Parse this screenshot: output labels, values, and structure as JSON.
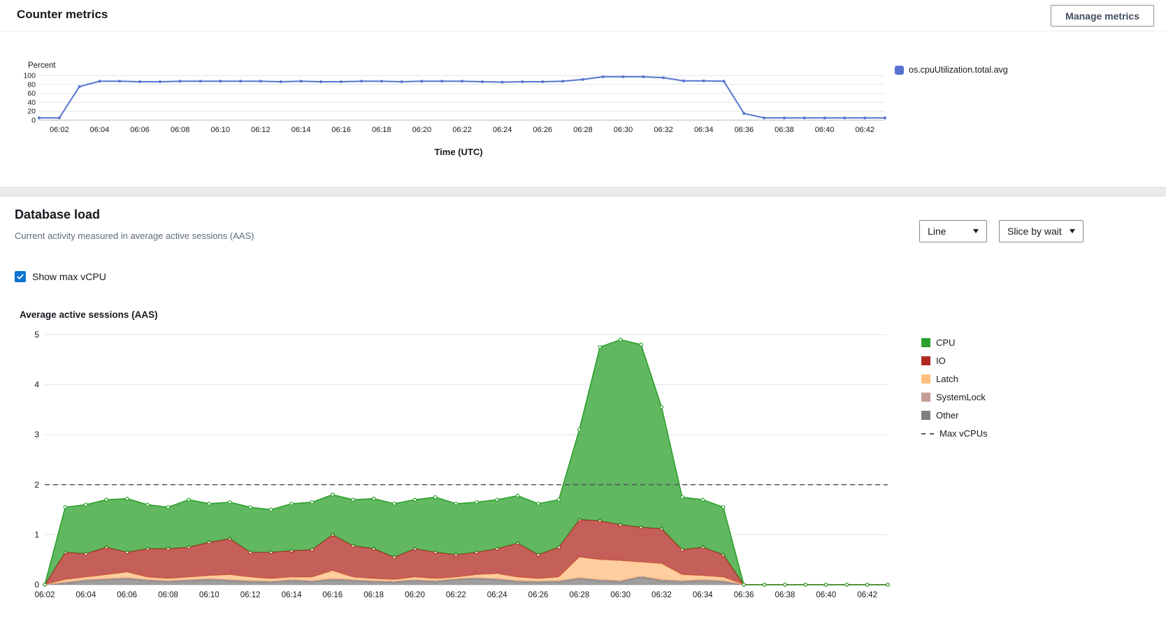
{
  "header": {
    "title": "Counter metrics",
    "manage_metrics_label": "Manage metrics"
  },
  "counter_section": {
    "y_axis_label": "Percent",
    "x_axis_label": "Time (UTC)",
    "legend_label": "os.cpuUtilization.total.avg"
  },
  "db_load_section": {
    "title": "Database load",
    "subtitle": "Current activity measured in average active sessions (AAS)",
    "view_dropdown_value": "Line",
    "slice_dropdown_value": "Slice by wait",
    "show_max_vcpu_label": "Show max vCPU",
    "show_max_vcpu_checked": true,
    "chart_title": "Average active sessions (AAS)"
  },
  "chart_data": [
    {
      "type": "line",
      "title": "os.cpuUtilization.total.avg",
      "ylabel": "Percent",
      "xlabel": "Time (UTC)",
      "ylim": [
        0,
        100
      ],
      "y_ticks": [
        0,
        20,
        40,
        60,
        80,
        100
      ],
      "grid": true,
      "legend_position": "right",
      "x_start": "06:01",
      "x_step_minutes": 1,
      "x_tick_labels": [
        "06:02",
        "06:04",
        "06:06",
        "06:08",
        "06:10",
        "06:12",
        "06:14",
        "06:16",
        "06:18",
        "06:20",
        "06:22",
        "06:24",
        "06:26",
        "06:28",
        "06:30",
        "06:32",
        "06:34",
        "06:36",
        "06:38",
        "06:40",
        "06:42"
      ],
      "series": [
        {
          "name": "os.cpuUtilization.total.avg",
          "color": "#5674cf",
          "values": [
            5,
            5,
            75,
            87,
            87,
            86,
            86,
            87,
            87,
            87,
            87,
            87,
            86,
            87,
            86,
            86,
            87,
            87,
            86,
            87,
            87,
            87,
            86,
            85,
            86,
            86,
            87,
            91,
            97,
            97,
            97,
            95,
            88,
            88,
            87,
            15,
            5,
            5,
            5,
            5,
            5,
            5,
            5
          ]
        }
      ]
    },
    {
      "type": "area",
      "stacked": true,
      "title": "Average active sessions (AAS)",
      "ylim": [
        0,
        5
      ],
      "y_ticks": [
        0,
        1,
        2,
        3,
        4,
        5
      ],
      "grid": true,
      "legend_position": "right",
      "max_vcpus": 2,
      "max_vcpus_color": "#54585e",
      "x_start": "06:02",
      "x_step_minutes": 1,
      "x_tick_labels": [
        "06:02",
        "06:04",
        "06:06",
        "06:08",
        "06:10",
        "06:12",
        "06:14",
        "06:16",
        "06:18",
        "06:20",
        "06:22",
        "06:24",
        "06:26",
        "06:28",
        "06:30",
        "06:32",
        "06:34",
        "06:36",
        "06:38",
        "06:40",
        "06:42"
      ],
      "series_bottom_to_top": [
        {
          "name": "Other",
          "color": "#7f7f7f",
          "values": [
            0,
            0.03,
            0.08,
            0.1,
            0.12,
            0.08,
            0.06,
            0.08,
            0.1,
            0.08,
            0.06,
            0.05,
            0.08,
            0.06,
            0.1,
            0.08,
            0.06,
            0.05,
            0.08,
            0.06,
            0.1,
            0.12,
            0.1,
            0.06,
            0.05,
            0.06,
            0.12,
            0.08,
            0.06,
            0.15,
            0.08,
            0.06,
            0.08,
            0.06,
            0,
            0,
            0,
            0,
            0,
            0,
            0,
            0
          ]
        },
        {
          "name": "SystemLock",
          "color": "#c49c94",
          "values": [
            0,
            0.02,
            0.02,
            0.02,
            0.02,
            0.02,
            0.02,
            0.02,
            0.02,
            0.02,
            0.02,
            0.02,
            0.02,
            0.02,
            0.02,
            0.02,
            0.02,
            0.02,
            0.02,
            0.02,
            0.02,
            0.02,
            0.02,
            0.02,
            0.02,
            0.02,
            0.02,
            0.02,
            0.02,
            0.02,
            0.02,
            0.02,
            0.02,
            0.02,
            0,
            0,
            0,
            0,
            0,
            0,
            0,
            0
          ]
        },
        {
          "name": "Latch",
          "color": "#ffbe7d",
          "values": [
            0,
            0.05,
            0.05,
            0.08,
            0.11,
            0.05,
            0.04,
            0.05,
            0.06,
            0.1,
            0.07,
            0.05,
            0.05,
            0.07,
            0.16,
            0.05,
            0.04,
            0.03,
            0.05,
            0.04,
            0.03,
            0.06,
            0.1,
            0.07,
            0.05,
            0.07,
            0.41,
            0.4,
            0.4,
            0.28,
            0.32,
            0.12,
            0.08,
            0.07,
            0,
            0,
            0,
            0,
            0,
            0,
            0,
            0
          ]
        },
        {
          "name": "IO",
          "color": "#b12a22",
          "values": [
            0,
            0.55,
            0.47,
            0.55,
            0.4,
            0.57,
            0.6,
            0.6,
            0.67,
            0.72,
            0.5,
            0.53,
            0.53,
            0.55,
            0.72,
            0.63,
            0.6,
            0.45,
            0.57,
            0.53,
            0.45,
            0.45,
            0.5,
            0.68,
            0.48,
            0.6,
            0.75,
            0.78,
            0.72,
            0.7,
            0.7,
            0.5,
            0.57,
            0.45,
            0,
            0,
            0,
            0,
            0,
            0,
            0,
            0
          ]
        },
        {
          "name": "CPU",
          "color": "#2ca02c",
          "values": [
            0,
            0.9,
            0.98,
            0.95,
            1.07,
            0.88,
            0.83,
            0.95,
            0.77,
            0.73,
            0.9,
            0.85,
            0.94,
            0.95,
            0.8,
            0.92,
            1.0,
            1.07,
            0.98,
            1.1,
            1.02,
            1.0,
            0.98,
            0.95,
            1.02,
            0.95,
            1.8,
            3.47,
            3.7,
            3.65,
            2.43,
            1.05,
            0.95,
            0.95,
            0,
            0,
            0,
            0,
            0,
            0,
            0,
            0
          ]
        }
      ],
      "legend": [
        {
          "label": "CPU",
          "color": "#2ca02c",
          "style": "box"
        },
        {
          "label": "IO",
          "color": "#b12a22",
          "style": "box"
        },
        {
          "label": "Latch",
          "color": "#ffbe7d",
          "style": "box"
        },
        {
          "label": "SystemLock",
          "color": "#c49c94",
          "style": "box"
        },
        {
          "label": "Other",
          "color": "#7f7f7f",
          "style": "box"
        },
        {
          "label": "Max vCPUs",
          "color": "#54585e",
          "style": "dash"
        }
      ]
    }
  ]
}
